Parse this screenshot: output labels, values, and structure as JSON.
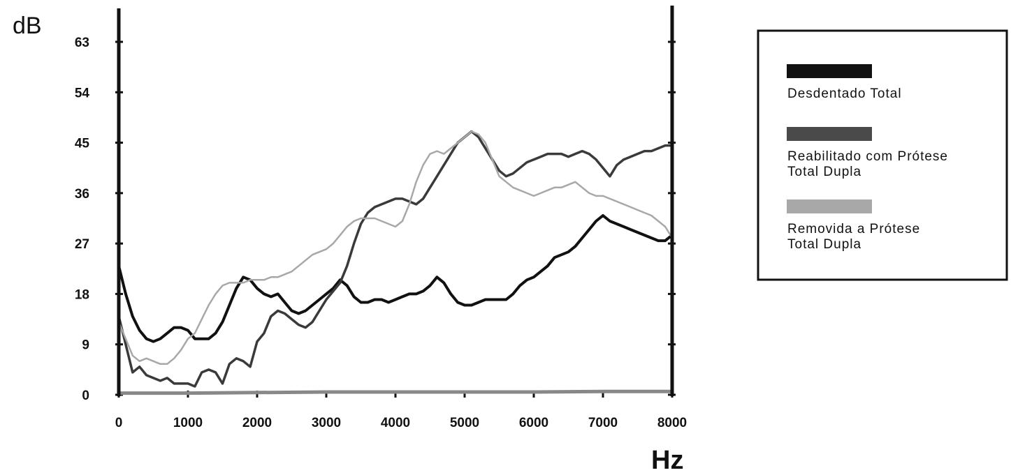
{
  "chart_data": {
    "type": "line",
    "xlabel": "Hz",
    "ylabel": "dB",
    "xlim": [
      0,
      8000
    ],
    "ylim": [
      0,
      63
    ],
    "x_ticks": [
      0,
      1000,
      2000,
      3000,
      4000,
      5000,
      6000,
      7000,
      8000
    ],
    "y_ticks": [
      0,
      9,
      18,
      27,
      36,
      45,
      54,
      63
    ],
    "grid": false,
    "legend_position": "top-right",
    "series": [
      {
        "name": "Desdentado Total",
        "color": "#111111",
        "x": [
          0,
          100,
          200,
          300,
          400,
          500,
          600,
          700,
          800,
          900,
          1000,
          1100,
          1200,
          1300,
          1400,
          1500,
          1600,
          1700,
          1800,
          1900,
          2000,
          2100,
          2200,
          2300,
          2400,
          2500,
          2600,
          2700,
          2800,
          2900,
          3000,
          3100,
          3200,
          3300,
          3400,
          3500,
          3600,
          3700,
          3800,
          3900,
          4000,
          4100,
          4200,
          4300,
          4400,
          4500,
          4600,
          4700,
          4800,
          4900,
          5000,
          5100,
          5200,
          5300,
          5400,
          5500,
          5600,
          5700,
          5800,
          5900,
          6000,
          6100,
          6200,
          6300,
          6400,
          6500,
          6600,
          6700,
          6800,
          6900,
          7000,
          7100,
          7200,
          7300,
          7400,
          7500,
          7600,
          7700,
          7800,
          7900,
          8000
        ],
        "values": [
          23,
          18,
          14,
          11.5,
          10,
          9.5,
          10,
          11,
          12,
          12,
          11.5,
          10,
          10,
          10,
          11,
          13,
          16,
          19,
          21,
          20.5,
          19,
          18,
          17.5,
          18,
          16.5,
          15,
          14.5,
          15,
          16,
          17,
          18,
          19,
          20.5,
          19.5,
          17.5,
          16.5,
          16.5,
          17,
          17,
          16.5,
          17,
          17.5,
          18,
          18,
          18.5,
          19.5,
          21,
          20,
          18,
          16.5,
          16,
          16,
          16.5,
          17,
          17,
          17,
          17,
          18,
          19.5,
          20.5,
          21,
          22,
          23,
          24.5,
          25,
          25.5,
          26.5,
          28,
          29.5,
          31,
          32,
          31,
          30.5,
          30,
          29.5,
          29,
          28.5,
          28,
          27.5,
          27.5,
          28.5
        ]
      },
      {
        "name": "Reabilitado com Prótese Total Dupla",
        "color": "#3a3a3a",
        "x": [
          0,
          100,
          200,
          300,
          400,
          500,
          600,
          700,
          800,
          900,
          1000,
          1100,
          1200,
          1300,
          1400,
          1500,
          1600,
          1700,
          1800,
          1900,
          2000,
          2100,
          2200,
          2300,
          2400,
          2500,
          2600,
          2700,
          2800,
          2900,
          3000,
          3100,
          3200,
          3300,
          3400,
          3500,
          3600,
          3700,
          3800,
          3900,
          4000,
          4100,
          4200,
          4300,
          4400,
          4500,
          4600,
          4700,
          4800,
          4900,
          5000,
          5100,
          5200,
          5300,
          5400,
          5500,
          5600,
          5700,
          5800,
          5900,
          6000,
          6100,
          6200,
          6300,
          6400,
          6500,
          6600,
          6700,
          6800,
          6900,
          7000,
          7100,
          7200,
          7300,
          7400,
          7500,
          7600,
          7700,
          7800,
          7900,
          8000
        ],
        "values": [
          14,
          9,
          4,
          5,
          3.5,
          3,
          2.5,
          3,
          2,
          2,
          2,
          1.5,
          4,
          4.5,
          4,
          2,
          5.5,
          6.5,
          6,
          5,
          9.5,
          11,
          14,
          15,
          14.5,
          13.5,
          12.5,
          12,
          13,
          15,
          17,
          18.5,
          20,
          23,
          27,
          30.5,
          32.5,
          33.5,
          34,
          34.5,
          35,
          35,
          34.5,
          34,
          35,
          37,
          39,
          41,
          43,
          45,
          46,
          47,
          46,
          44,
          42,
          40,
          39,
          39.5,
          40.5,
          41.5,
          42,
          42.5,
          43,
          43,
          43,
          42.5,
          43,
          43.5,
          43,
          42,
          40.5,
          39,
          41,
          42,
          42.5,
          43,
          43.5,
          43.5,
          44,
          44.5,
          44.5
        ]
      },
      {
        "name": "Removida a Prótese Total Dupla",
        "color": "#a8a8a8",
        "x": [
          0,
          100,
          200,
          300,
          400,
          500,
          600,
          700,
          800,
          900,
          1000,
          1100,
          1200,
          1300,
          1400,
          1500,
          1600,
          1700,
          1800,
          1900,
          2000,
          2100,
          2200,
          2300,
          2400,
          2500,
          2600,
          2700,
          2800,
          2900,
          3000,
          3100,
          3200,
          3300,
          3400,
          3500,
          3600,
          3700,
          3800,
          3900,
          4000,
          4100,
          4200,
          4300,
          4400,
          4500,
          4600,
          4700,
          4800,
          4900,
          5000,
          5100,
          5200,
          5300,
          5400,
          5500,
          5600,
          5700,
          5800,
          5900,
          6000,
          6100,
          6200,
          6300,
          6400,
          6500,
          6600,
          6700,
          6800,
          6900,
          7000,
          7100,
          7200,
          7300,
          7400,
          7500,
          7600,
          7700,
          7800,
          7900,
          8000
        ],
        "values": [
          13,
          10,
          7,
          6,
          6.5,
          6,
          5.5,
          5.5,
          6.5,
          8,
          10,
          11,
          13.5,
          16,
          18,
          19.5,
          20,
          20,
          20,
          20.5,
          20.5,
          20.5,
          21,
          21,
          21.5,
          22,
          23,
          24,
          25,
          25.5,
          26,
          27,
          28.5,
          30,
          31,
          31.5,
          31.5,
          31.5,
          31,
          30.5,
          30,
          31,
          34,
          38,
          41,
          43,
          43.5,
          43,
          44,
          45,
          46,
          47,
          46.5,
          45,
          42,
          39,
          38,
          37,
          36.5,
          36,
          35.5,
          36,
          36.5,
          37,
          37,
          37.5,
          38,
          37,
          36,
          35.5,
          35.5,
          35,
          34.5,
          34,
          33.5,
          33,
          32.5,
          32,
          31,
          30,
          28
        ]
      },
      {
        "name": "",
        "color": "#888888",
        "x": [
          0,
          1000,
          2000,
          3000,
          4000,
          5000,
          6000,
          7000,
          8000
        ],
        "values": [
          0.3,
          0.3,
          0.4,
          0.5,
          0.5,
          0.5,
          0.5,
          0.6,
          0.6
        ]
      }
    ]
  }
}
